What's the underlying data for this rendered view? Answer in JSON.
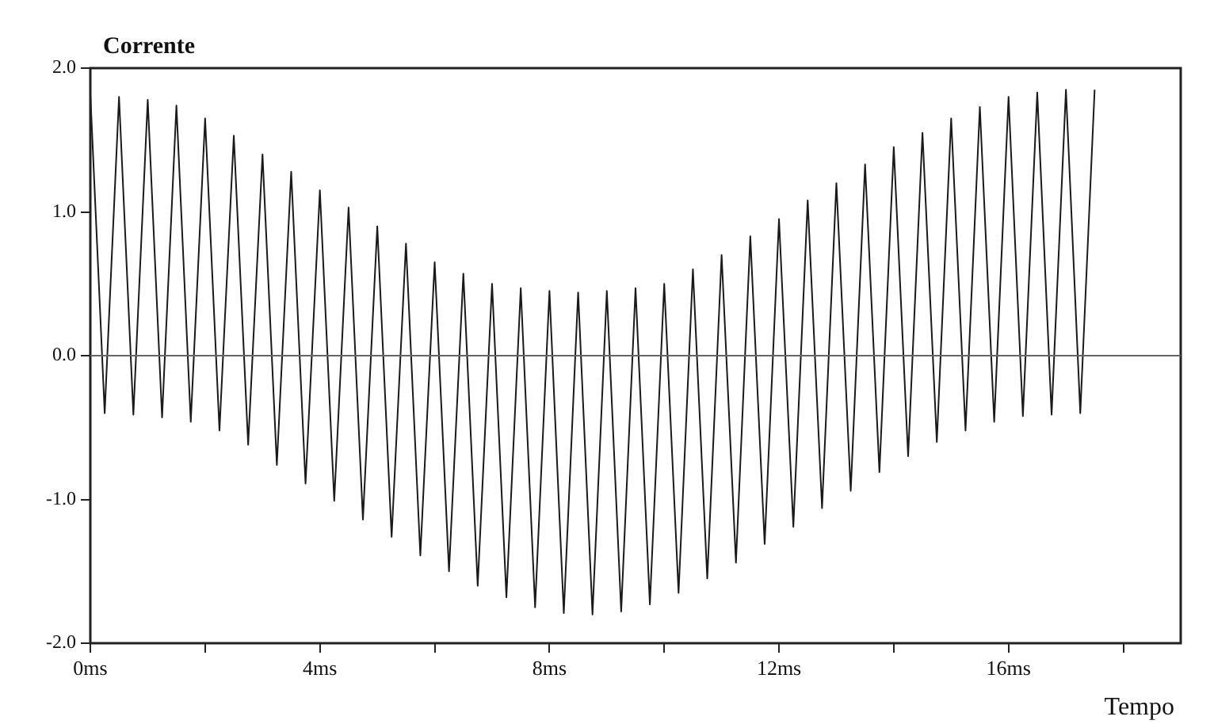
{
  "chart_data": {
    "type": "line",
    "xlabel": "Tempo",
    "ylabel": "Corrente",
    "xlim": [
      0,
      19
    ],
    "ylim": [
      -2,
      2
    ],
    "xticks": [
      {
        "value": 0,
        "label": "0ms"
      },
      {
        "value": 2,
        "label": null
      },
      {
        "value": 4,
        "label": "4ms"
      },
      {
        "value": 6,
        "label": null
      },
      {
        "value": 8,
        "label": "8ms"
      },
      {
        "value": 10,
        "label": null
      },
      {
        "value": 12,
        "label": "12ms"
      },
      {
        "value": 14,
        "label": null
      },
      {
        "value": 16,
        "label": "16ms"
      },
      {
        "value": 18,
        "label": null
      }
    ],
    "yticks": [
      {
        "value": -2,
        "label": "-2.0"
      },
      {
        "value": -1,
        "label": "-1.0"
      },
      {
        "value": 0,
        "label": "0.0"
      },
      {
        "value": 1,
        "label": "1.0"
      },
      {
        "value": 2,
        "label": "2.0"
      }
    ],
    "grid": false,
    "legend": false,
    "ref_lines": [
      {
        "axis": "y",
        "value": 0,
        "color": "#666666"
      }
    ],
    "series": [
      {
        "color": "#1a1a1a",
        "x": [
          0,
          0.25,
          0.5,
          0.75,
          1,
          1.25,
          1.5,
          1.75,
          2,
          2.25,
          2.5,
          2.75,
          3,
          3.25,
          3.5,
          3.75,
          4,
          4.25,
          4.5,
          4.75,
          5,
          5.25,
          5.5,
          5.75,
          6,
          6.25,
          6.5,
          6.75,
          7,
          7.25,
          7.5,
          7.75,
          8,
          8.25,
          8.5,
          8.75,
          9,
          9.25,
          9.5,
          9.75,
          10,
          10.25,
          10.5,
          10.75,
          11,
          11.25,
          11.5,
          11.75,
          12,
          12.25,
          12.5,
          12.75,
          13,
          13.25,
          13.5,
          13.75,
          14,
          14.25,
          14.5,
          14.75,
          15,
          15.25,
          15.5,
          15.75,
          16,
          16.25,
          16.5,
          16.75,
          17,
          17.25,
          17.5
        ],
        "values": [
          1.82,
          -0.4,
          1.8,
          -0.41,
          1.78,
          -0.43,
          1.74,
          -0.46,
          1.65,
          -0.52,
          1.53,
          -0.62,
          1.4,
          -0.76,
          1.28,
          -0.89,
          1.15,
          -1.01,
          1.03,
          -1.14,
          0.9,
          -1.26,
          0.78,
          -1.39,
          0.65,
          -1.5,
          0.57,
          -1.6,
          0.5,
          -1.68,
          0.47,
          -1.75,
          0.45,
          -1.79,
          0.44,
          -1.8,
          0.45,
          -1.78,
          0.47,
          -1.73,
          0.5,
          -1.65,
          0.6,
          -1.55,
          0.7,
          -1.44,
          0.83,
          -1.31,
          0.95,
          -1.19,
          1.08,
          -1.06,
          1.2,
          -0.94,
          1.33,
          -0.81,
          1.45,
          -0.7,
          1.55,
          -0.6,
          1.65,
          -0.52,
          1.73,
          -0.46,
          1.8,
          -0.42,
          1.83,
          -0.41,
          1.85,
          -0.4,
          1.85
        ]
      }
    ]
  }
}
